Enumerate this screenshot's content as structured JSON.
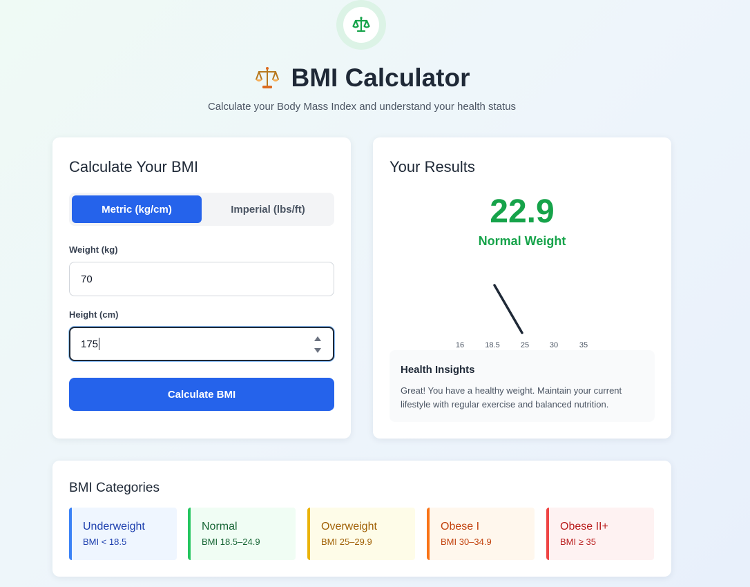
{
  "header": {
    "title": "BMI Calculator",
    "subtitle": "Calculate your Body Mass Index and understand your health status"
  },
  "calculator": {
    "title": "Calculate Your BMI",
    "units": {
      "metric_label": "Metric (kg/cm)",
      "imperial_label": "Imperial (lbs/ft)",
      "selected": "metric"
    },
    "weight_label": "Weight (kg)",
    "weight_value": "70",
    "height_label": "Height (cm)",
    "height_value": "175",
    "calculate_label": "Calculate BMI"
  },
  "results": {
    "title": "Your Results",
    "bmi_value": "22.9",
    "category": "Normal Weight",
    "gauge_ticks": [
      "16",
      "18.5",
      "25",
      "30",
      "35"
    ],
    "insights_title": "Health Insights",
    "insights_text": "Great! You have a healthy weight. Maintain your current lifestyle with regular exercise and balanced nutrition."
  },
  "categories": {
    "title": "BMI Categories",
    "items": [
      {
        "name": "Underweight",
        "range": "BMI < 18.5",
        "color": "#3b82f6",
        "bg": "#eff6ff",
        "text": "#1e40af"
      },
      {
        "name": "Normal",
        "range": "BMI 18.5–24.9",
        "color": "#22c55e",
        "bg": "#f0fdf4",
        "text": "#166534"
      },
      {
        "name": "Overweight",
        "range": "BMI 25–29.9",
        "color": "#eab308",
        "bg": "#fefce8",
        "text": "#a16207"
      },
      {
        "name": "Obese I",
        "range": "BMI 30–34.9",
        "color": "#f97316",
        "bg": "#fff7ed",
        "text": "#c2410c"
      },
      {
        "name": "Obese II+",
        "range": "BMI ≥ 35",
        "color": "#ef4444",
        "bg": "#fef2f2",
        "text": "#b91c1c"
      }
    ]
  },
  "colors": {
    "accent": "#2563eb",
    "success": "#16a34a"
  },
  "icons": {
    "logo": "balance-scale-icon",
    "title": "balance-scale-emoji-icon"
  }
}
